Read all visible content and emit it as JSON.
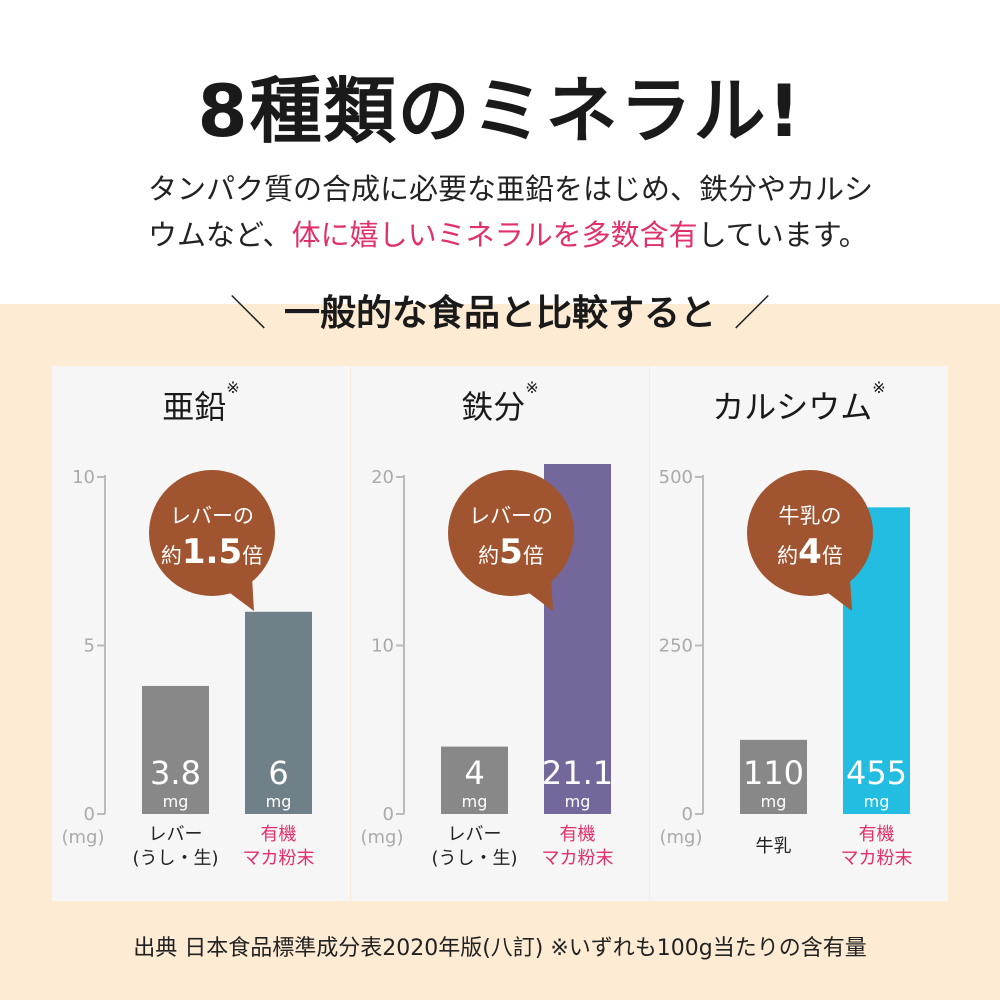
{
  "title": "8種類のミネラル!",
  "intro": {
    "part1": "タンパク質の合成に必要な亜鉛をはじめ、鉄分やカルシウムなど、",
    "highlight": "体に嬉しいミネラルを多数含有",
    "part2": "しています。"
  },
  "compare_heading": "一般的な食品と比較すると",
  "compare_slash_left": "＼",
  "compare_slash_right": "／",
  "unit_label": "(mg)",
  "note_mark": "※",
  "colors": {
    "accent": "#e0306e",
    "bubble": "#a0542f",
    "band": "#fdebd3",
    "gray_bar": "#888888"
  },
  "chart_data": [
    {
      "type": "bar",
      "title": "亜鉛",
      "categories": [
        "レバー\n(うし・生)",
        "有機\nマカ粉末"
      ],
      "values": [
        3.8,
        6
      ],
      "value_labels": [
        "3.8",
        "6"
      ],
      "unit": "mg",
      "ylim": [
        0,
        10
      ],
      "yticks": [
        0,
        5,
        10
      ],
      "bar_colors": [
        "#888888",
        "#6f8088"
      ],
      "category_colors": [
        "#222222",
        "#e0306e"
      ],
      "bubble": {
        "line1": "レバーの",
        "prefix": "約",
        "num": "1.5",
        "suffix": "倍"
      }
    },
    {
      "type": "bar",
      "title": "鉄分",
      "categories": [
        "レバー\n(うし・生)",
        "有機\nマカ粉末"
      ],
      "values": [
        4,
        21.1
      ],
      "value_labels": [
        "4",
        "21.1"
      ],
      "unit": "mg",
      "ylim": [
        0,
        20
      ],
      "yticks": [
        0,
        10,
        20
      ],
      "bar_colors": [
        "#888888",
        "#74679b"
      ],
      "category_colors": [
        "#222222",
        "#e0306e"
      ],
      "bubble": {
        "line1": "レバーの",
        "prefix": "約",
        "num": "5",
        "suffix": "倍"
      }
    },
    {
      "type": "bar",
      "title": "カルシウム",
      "categories": [
        "牛乳",
        "有機\nマカ粉末"
      ],
      "values": [
        110,
        455
      ],
      "value_labels": [
        "110",
        "455"
      ],
      "unit": "mg",
      "ylim": [
        0,
        500
      ],
      "yticks": [
        0,
        250,
        500
      ],
      "bar_colors": [
        "#888888",
        "#22bde0"
      ],
      "category_colors": [
        "#222222",
        "#e0306e"
      ],
      "bubble": {
        "line1": "牛乳の",
        "prefix": "約",
        "num": "4",
        "suffix": "倍"
      }
    }
  ],
  "source": "出典 日本食品標準成分表2020年版(八訂) ※いずれも100g当たりの含有量"
}
